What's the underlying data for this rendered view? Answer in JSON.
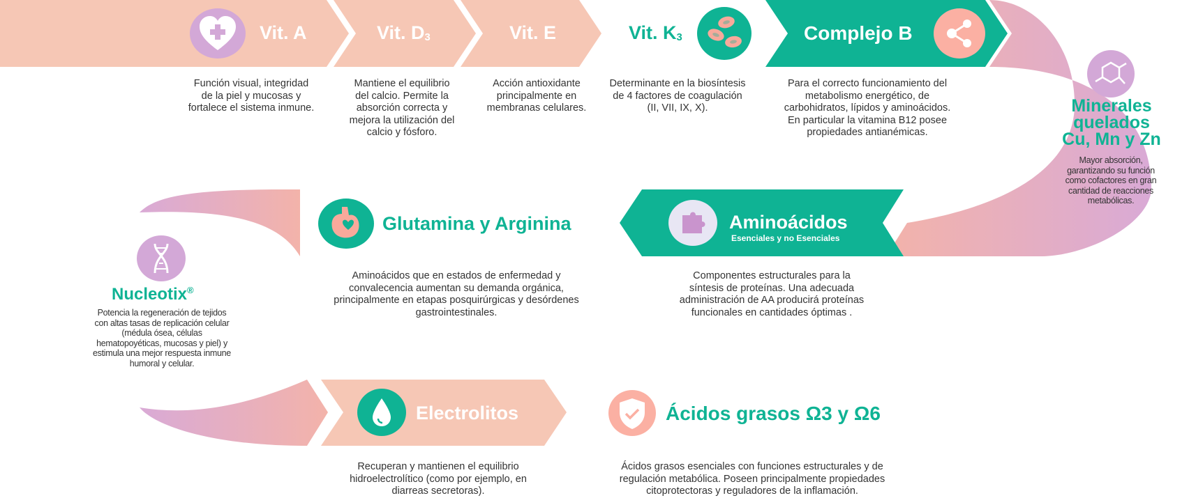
{
  "colors": {
    "peach": "#f6c7b5",
    "teal": "#0fb394",
    "lavender": "#cfa8d6",
    "coral": "#fbb0a3",
    "text": "#333333"
  },
  "items": {
    "vit_a": {
      "title": "Vit. A",
      "icon": "heart-plus-icon",
      "desc": "Función visual, integridad de la piel y mucosas y fortalece el sistema inmune."
    },
    "vit_d3": {
      "title": "Vit. D",
      "title_sub": "3",
      "desc": "Mantiene el equilibrio del calcio. Permite la absorción correcta y mejora la utilización del calcio y fósforo."
    },
    "vit_e": {
      "title": "Vit. E",
      "desc": "Acción antioxidante principalmente en membranas celulares."
    },
    "vit_k3": {
      "title": "Vit. K",
      "title_sub": "3",
      "icon": "blood-cells-icon",
      "desc": "Determinante en la biosíntesis de 4 factores de coagulación (II, VII, IX, X)."
    },
    "complejo_b": {
      "title": "Complejo B",
      "icon": "share-molecule-icon",
      "desc": "Para el correcto funcionamiento del metabolismo  energético, de carbohidratos, lípidos y aminoácidos. En particular la vitamina B12 posee propiedades antianémicas."
    },
    "minerales": {
      "title_line1": "Minerales",
      "title_line2": "quelados",
      "title_line3": "Cu, Mn y Zn",
      "icon": "hexagon-molecule-icon",
      "desc": "Mayor absorción, garantizando su función como cofactores en gran cantidad de reacciones metabólicas."
    },
    "aminoacidos": {
      "title": "Aminoácidos",
      "subtitle": "Esenciales y no Esenciales",
      "icon": "puzzle-icon",
      "desc": "Componentes estructurales para la síntesis de proteínas. Una adecuada administración de AA producirá proteínas funcionales en cantidades óptimas ."
    },
    "glutamina": {
      "title": "Glutamina y Arginina",
      "icon": "stomach-icon",
      "desc": "Aminoácidos que en estados de enfermedad y convalecencia aumentan su demanda orgánica, principalmente en etapas posquirúrgicas y desórdenes gastrointestinales."
    },
    "nucleotix": {
      "title": "Nucleotix",
      "reg": "®",
      "icon": "dna-icon",
      "desc": "Potencia la regeneración de tejidos  con altas tasas de replicación celular (médula ósea, células hematopoyéticas, mucosas y piel) y estimula una mejor respuesta inmune humoral y celular."
    },
    "electrolitos": {
      "title": "Electrolitos",
      "icon": "water-drop-icon",
      "desc": "Recuperan y mantienen el equilibrio hidroelectrolítico (como por ejemplo, en diarreas secretoras)."
    },
    "acidos": {
      "title": "Ácidos grasos Ω3 y Ω6",
      "icon": "shield-check-icon",
      "desc": "Ácidos grasos esenciales con funciones estructurales y de regulación metabólica. Poseen principalmente propiedades citoprotectoras y reguladores de la inflamación."
    }
  }
}
